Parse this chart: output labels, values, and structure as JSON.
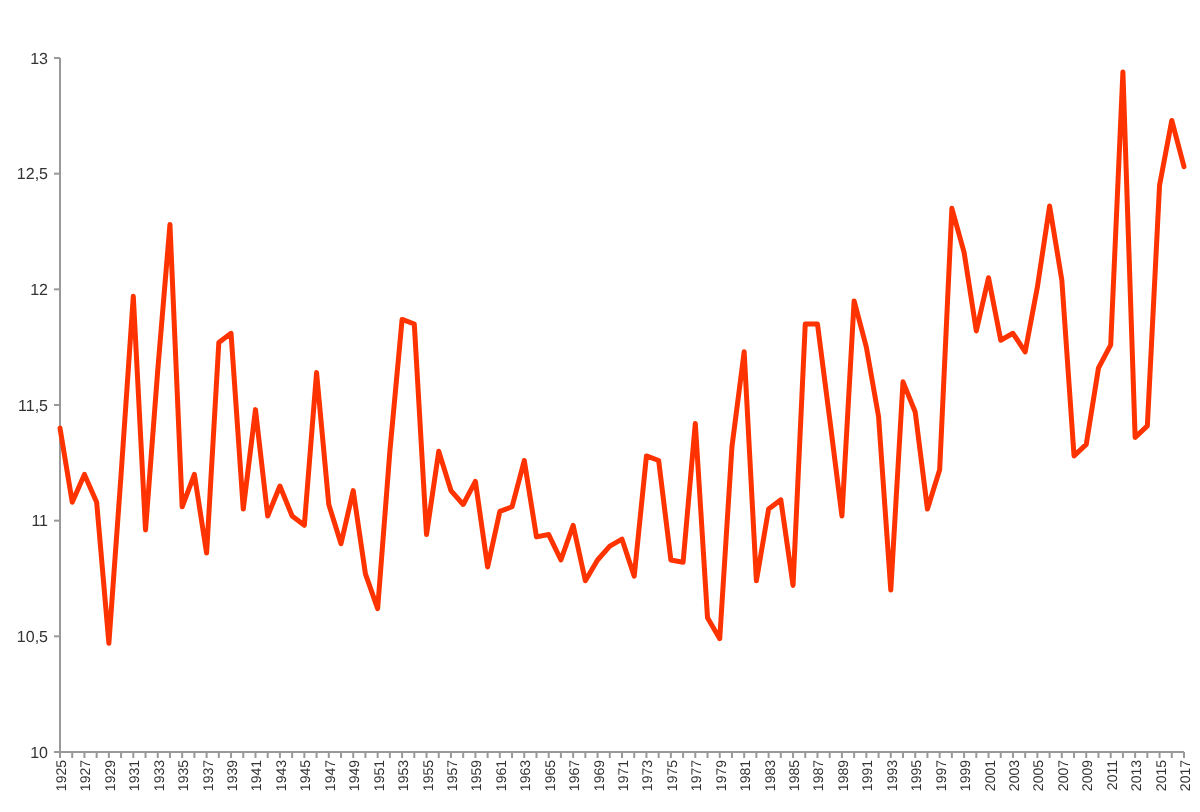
{
  "chart_data": {
    "type": "line",
    "categories": [
      "1925",
      null,
      "1927",
      null,
      "1929",
      null,
      "1931",
      null,
      "1933",
      null,
      "1935",
      null,
      "1937",
      null,
      "1939",
      null,
      "1941",
      null,
      "1943",
      null,
      "1945",
      null,
      "1947",
      null,
      "1949",
      null,
      "1951",
      null,
      "1953",
      null,
      "1955",
      null,
      "1957",
      null,
      "1959",
      null,
      "1961",
      null,
      "1963",
      null,
      "1965",
      null,
      "1967",
      null,
      "1969",
      null,
      "1971",
      null,
      "1973",
      null,
      "1975",
      null,
      "1977",
      null,
      "1979",
      null,
      "1981",
      null,
      "1983",
      null,
      "1985",
      null,
      "1987",
      null,
      "1989",
      null,
      "1991",
      null,
      "1993",
      null,
      "1995",
      null,
      "1997",
      null,
      "1999",
      null,
      "2001",
      null,
      "2003",
      null,
      "2005",
      null,
      "2007",
      null,
      "2009",
      null,
      "2011",
      null,
      "2013",
      null,
      "2015",
      null,
      "2017"
    ],
    "series": [
      {
        "color": "#ff3300",
        "values": [
          11.4,
          11.08,
          11.2,
          11.08,
          10.47,
          11.2,
          11.97,
          10.96,
          11.65,
          12.28,
          11.06,
          11.2,
          10.86,
          11.77,
          11.81,
          11.05,
          11.48,
          11.02,
          11.15,
          11.02,
          10.98,
          11.64,
          11.07,
          10.9,
          11.13,
          10.77,
          10.62,
          11.3,
          11.87,
          11.85,
          10.94,
          11.3,
          11.13,
          11.07,
          11.17,
          10.8,
          11.04,
          11.06,
          11.26,
          10.93,
          10.94,
          10.83,
          10.98,
          10.74,
          10.83,
          10.89,
          10.92,
          10.76,
          11.28,
          11.26,
          10.83,
          10.82,
          11.42,
          10.58,
          10.49,
          11.32,
          11.73,
          10.74,
          11.05,
          11.09,
          10.72,
          11.85,
          11.85,
          11.44,
          11.02,
          11.95,
          11.75,
          11.45,
          10.7,
          11.6,
          11.47,
          11.05,
          11.22,
          12.35,
          12.16,
          11.82,
          12.05,
          11.78,
          11.81,
          11.73,
          12.01,
          12.36,
          12.04,
          11.28,
          11.33,
          11.66,
          11.76,
          12.94,
          11.36,
          11.41,
          12.45,
          12.73,
          12.53
        ]
      }
    ],
    "ylim": [
      10,
      13
    ],
    "yticks": [
      10,
      {
        "value": 10.5,
        "label": "10,5"
      },
      11,
      {
        "value": 11.5,
        "label": "11,5"
      },
      12,
      {
        "value": 12.5,
        "label": "12,5"
      },
      13
    ],
    "marker": "none",
    "line_style": "solid"
  }
}
